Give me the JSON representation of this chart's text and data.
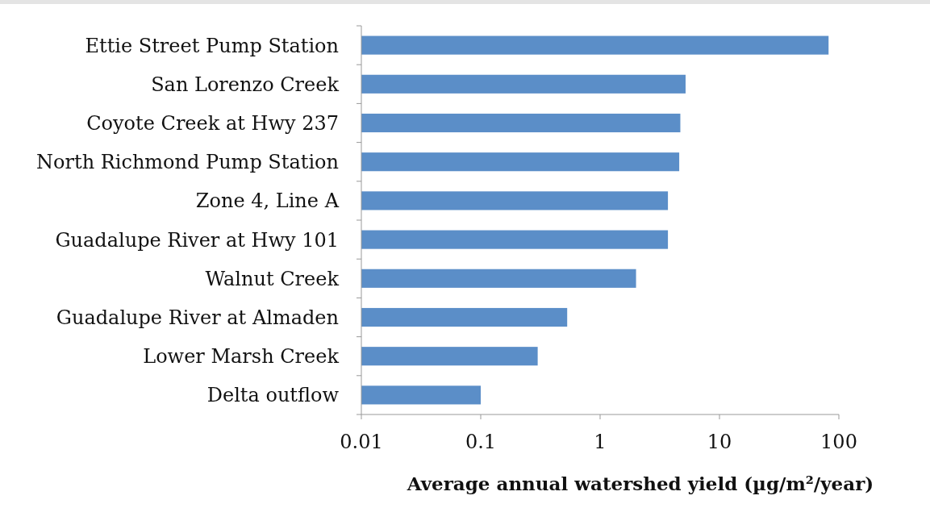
{
  "chart_data": {
    "type": "bar",
    "orientation": "horizontal",
    "log": "x",
    "xlabel": "Average annual watershed yield (µg/m²/year)",
    "categories": [
      "Ettie Street Pump Station",
      "San Lorenzo Creek",
      "Coyote Creek at Hwy 237",
      "North Richmond Pump Station",
      "Zone 4, Line A",
      "Guadalupe River at Hwy 101",
      "Walnut Creek",
      "Guadalupe River at Almaden",
      "Lower Marsh Creek",
      "Delta outflow"
    ],
    "values": [
      82,
      5.2,
      4.7,
      4.6,
      3.7,
      3.7,
      2.0,
      0.53,
      0.3,
      0.1
    ],
    "color": "#5b8ec8",
    "xlim": [
      0.01,
      100
    ],
    "xticks": [
      0.01,
      0.1,
      1,
      10,
      100
    ]
  }
}
